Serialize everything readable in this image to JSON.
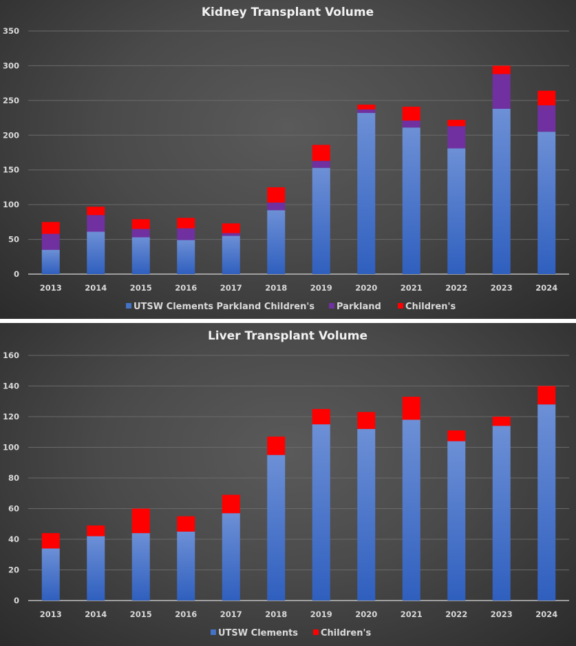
{
  "chart_data": [
    {
      "type": "bar",
      "stacked": true,
      "title": "Kidney Transplant Volume",
      "xlabel": "",
      "ylabel": "",
      "categories": [
        "2013",
        "2014",
        "2015",
        "2016",
        "2017",
        "2018",
        "2019",
        "2020",
        "2021",
        "2022",
        "2023",
        "2024"
      ],
      "ylim": [
        0,
        350
      ],
      "yticks": [
        0,
        50,
        100,
        150,
        200,
        250,
        300,
        350
      ],
      "ytick_labels": [
        "0",
        "50",
        "100",
        "150",
        "200",
        "250",
        "300",
        "350"
      ],
      "grid": true,
      "legend_position": "bottom",
      "series": [
        {
          "name": "UTSW Clements  Parkland Children's",
          "color": "#4472C4",
          "values": [
            35,
            61,
            53,
            49,
            55,
            92,
            153,
            232,
            211,
            181,
            238,
            205
          ]
        },
        {
          "name": "Parkland",
          "color": "#7030A0",
          "values": [
            23,
            24,
            12,
            17,
            4,
            11,
            10,
            5,
            10,
            32,
            50,
            38
          ]
        },
        {
          "name": "Children's",
          "color": "#FF0000",
          "values": [
            17,
            12,
            14,
            15,
            14,
            22,
            23,
            7,
            20,
            9,
            12,
            21
          ]
        }
      ]
    },
    {
      "type": "bar",
      "stacked": true,
      "title": "Liver Transplant Volume",
      "xlabel": "",
      "ylabel": "",
      "categories": [
        "2013",
        "2014",
        "2015",
        "2016",
        "2017",
        "2018",
        "2019",
        "2020",
        "2021",
        "2022",
        "2023",
        "2024"
      ],
      "ylim": [
        0,
        160
      ],
      "yticks": [
        0,
        20,
        40,
        60,
        80,
        100,
        120,
        140,
        160
      ],
      "ytick_labels": [
        "0",
        "20",
        "40",
        "60",
        "80",
        "100",
        "120",
        "140",
        "160"
      ],
      "grid": true,
      "legend_position": "bottom",
      "series": [
        {
          "name": "UTSW Clements",
          "color": "#4472C4",
          "values": [
            34,
            42,
            44,
            45,
            57,
            95,
            115,
            112,
            118,
            104,
            114,
            128
          ]
        },
        {
          "name": "Children's",
          "color": "#FF0000",
          "values": [
            10,
            7,
            16,
            10,
            12,
            12,
            10,
            11,
            15,
            7,
            6,
            12
          ]
        }
      ]
    }
  ]
}
